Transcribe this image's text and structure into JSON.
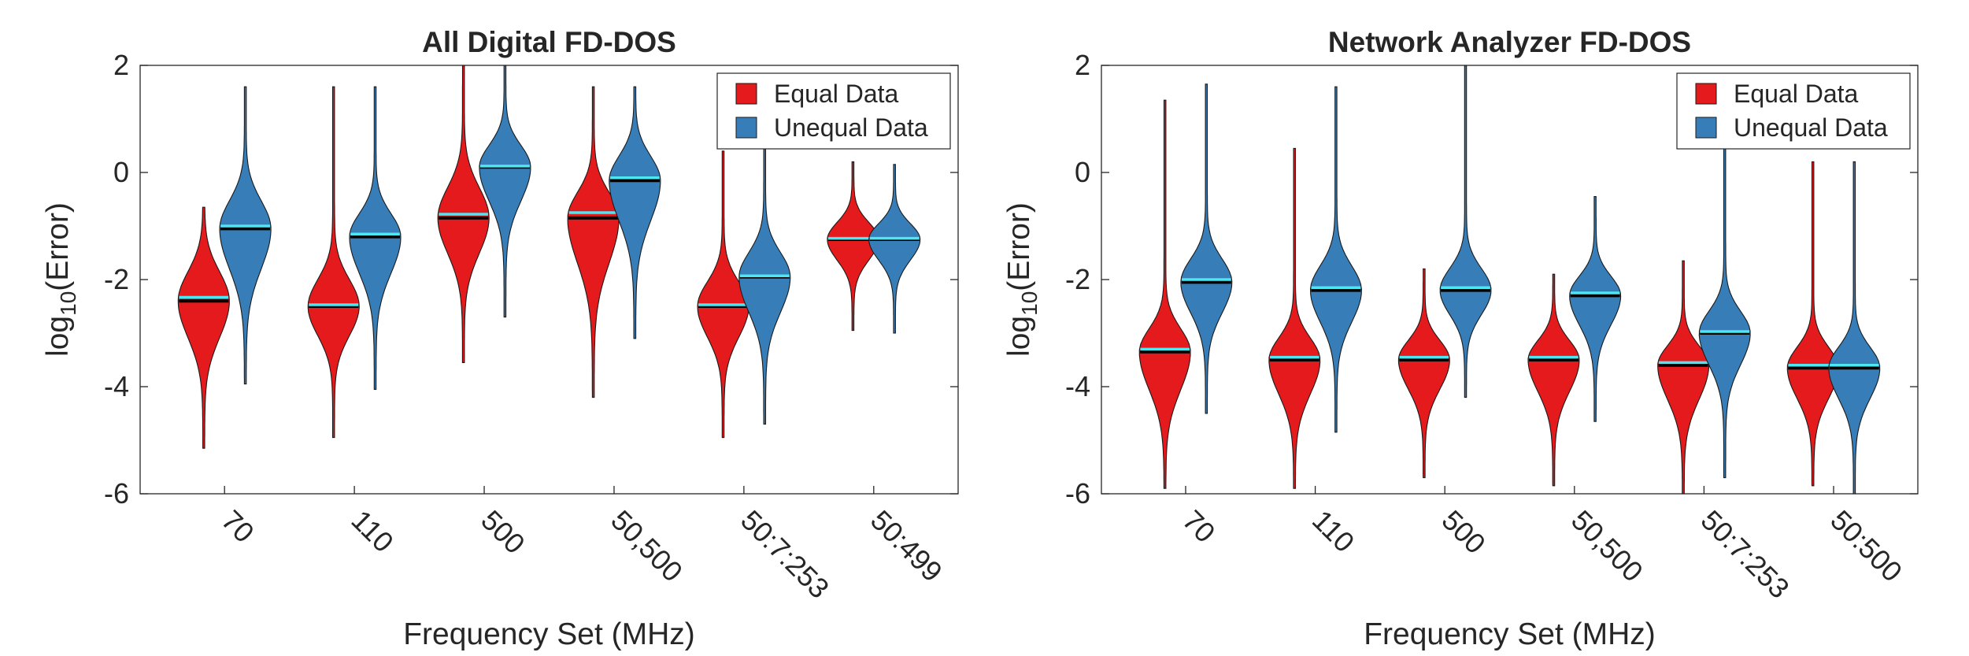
{
  "chart_data": [
    {
      "type": "violin",
      "title": "All Digital FD-DOS",
      "xlabel": "Frequency Set (MHz)",
      "ylabel": "log10(Error)",
      "ylabel_base": "log",
      "ylabel_sub": "10",
      "ylabel_rest": "(Error)",
      "ylim": [
        -6,
        2
      ],
      "yticks": [
        "-6",
        "-4",
        "-2",
        "0",
        "2"
      ],
      "categories": [
        "70",
        "110",
        "500",
        "50,500",
        "50:7:253",
        "50:499"
      ],
      "legend": {
        "position": "top-right",
        "entries": [
          "Equal Data",
          "Unequal Data"
        ]
      },
      "series": [
        {
          "name": "Equal Data",
          "color": "#e41a1c",
          "median": [
            -2.4,
            -2.5,
            -0.85,
            -0.85,
            -2.5,
            -1.25
          ],
          "mean": [
            -2.33,
            -2.47,
            -0.78,
            -0.75,
            -2.47,
            -1.23
          ],
          "min": [
            -5.15,
            -4.95,
            -3.55,
            -4.2,
            -4.95,
            -2.95
          ],
          "max": [
            -0.65,
            1.6,
            2.0,
            1.6,
            0.4,
            0.2
          ],
          "q1": [
            -2.75,
            -2.85,
            -1.25,
            -1.35,
            -2.85,
            -1.55
          ],
          "q3": [
            -1.95,
            -2.1,
            -0.45,
            -0.45,
            -2.15,
            -0.95
          ],
          "lo_tail": [
            -3.9,
            -3.7,
            -2.3,
            -2.7,
            -3.75,
            -2.1
          ],
          "hi_tail": [
            -1.2,
            -1.4,
            0.4,
            0.2,
            -1.5,
            -0.55
          ]
        },
        {
          "name": "Unequal Data",
          "color": "#377eb8",
          "median": [
            -1.05,
            -1.2,
            0.1,
            -0.15,
            -1.95,
            -1.25
          ],
          "mean": [
            -1.0,
            -1.15,
            0.12,
            -0.1,
            -1.93,
            -1.23
          ],
          "min": [
            -3.95,
            -4.05,
            -2.7,
            -3.1,
            -4.7,
            -3.0
          ],
          "max": [
            1.6,
            1.6,
            2.0,
            1.6,
            0.45,
            0.15
          ],
          "q1": [
            -1.55,
            -1.65,
            -0.45,
            -0.65,
            -2.45,
            -1.55
          ],
          "q3": [
            -0.6,
            -0.75,
            0.55,
            0.35,
            -1.5,
            -0.95
          ],
          "lo_tail": [
            -2.7,
            -2.7,
            -1.3,
            -1.8,
            -3.4,
            -2.1
          ],
          "hi_tail": [
            0.1,
            -0.25,
            1.0,
            0.85,
            -0.95,
            -0.6
          ]
        }
      ]
    },
    {
      "type": "violin",
      "title": "Network Analyzer FD-DOS",
      "xlabel": "Frequency Set (MHz)",
      "ylabel": "log10(Error)",
      "ylabel_base": "log",
      "ylabel_sub": "10",
      "ylabel_rest": "(Error)",
      "ylim": [
        -6,
        2
      ],
      "yticks": [
        "-6",
        "-4",
        "-2",
        "0",
        "2"
      ],
      "categories": [
        "70",
        "110",
        "500",
        "50,500",
        "50:7:253",
        "50:500"
      ],
      "legend": {
        "position": "top-right",
        "entries": [
          "Equal Data",
          "Unequal Data"
        ]
      },
      "series": [
        {
          "name": "Equal Data",
          "color": "#e41a1c",
          "median": [
            -3.35,
            -3.5,
            -3.5,
            -3.5,
            -3.6,
            -3.65
          ],
          "mean": [
            -3.3,
            -3.45,
            -3.45,
            -3.45,
            -3.55,
            -3.6
          ],
          "min": [
            -5.9,
            -5.9,
            -5.7,
            -5.85,
            -6.0,
            -5.85
          ],
          "max": [
            1.35,
            0.45,
            -1.8,
            -1.9,
            -1.65,
            0.2
          ],
          "q1": [
            -3.75,
            -3.9,
            -3.8,
            -3.85,
            -3.95,
            -4.0
          ],
          "q3": [
            -2.95,
            -3.15,
            -3.2,
            -3.15,
            -3.25,
            -3.3
          ],
          "lo_tail": [
            -4.9,
            -4.9,
            -4.7,
            -4.8,
            -5.0,
            -4.9
          ],
          "hi_tail": [
            -2.4,
            -2.6,
            -2.7,
            -2.7,
            -2.8,
            -2.8
          ]
        },
        {
          "name": "Unequal Data",
          "color": "#377eb8",
          "median": [
            -2.05,
            -2.2,
            -2.2,
            -2.3,
            -3.0,
            -3.65
          ],
          "mean": [
            -2.0,
            -2.15,
            -2.15,
            -2.25,
            -2.97,
            -3.6
          ],
          "min": [
            -4.5,
            -4.85,
            -4.2,
            -4.65,
            -5.7,
            -6.0
          ],
          "max": [
            1.65,
            1.6,
            2.0,
            -0.45,
            0.5,
            0.2
          ],
          "q1": [
            -2.45,
            -2.6,
            -2.55,
            -2.65,
            -3.35,
            -3.95
          ],
          "q3": [
            -1.6,
            -1.75,
            -1.8,
            -1.9,
            -2.6,
            -3.3
          ],
          "lo_tail": [
            -3.3,
            -3.5,
            -3.2,
            -3.5,
            -4.3,
            -4.9
          ],
          "hi_tail": [
            -1.1,
            -1.2,
            -1.3,
            -1.5,
            -2.1,
            -2.8
          ]
        }
      ]
    }
  ]
}
